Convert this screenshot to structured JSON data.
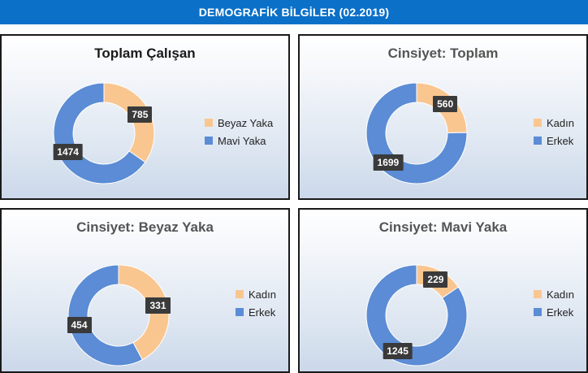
{
  "header": {
    "title": "DEMOGRAFİK BİLGİLER (02.2019)"
  },
  "colors": {
    "light": "#f9c690",
    "blue": "#5b8cd5",
    "banner": "#0a70c8",
    "label_bg": "#3a3a3a"
  },
  "chart_data": [
    {
      "type": "pie",
      "title": "Toplam Çalışan",
      "series": [
        {
          "name": "Beyaz Yaka",
          "value": 785,
          "color": "#f9c690"
        },
        {
          "name": "Mavi Yaka",
          "value": 1474,
          "color": "#5b8cd5"
        }
      ],
      "legend": "right"
    },
    {
      "type": "pie",
      "title": "Cinsiyet: Toplam",
      "series": [
        {
          "name": "Kadın",
          "value": 560,
          "color": "#f9c690"
        },
        {
          "name": "Erkek",
          "value": 1699,
          "color": "#5b8cd5"
        }
      ],
      "legend": "right"
    },
    {
      "type": "pie",
      "title": "Cinsiyet: Beyaz Yaka",
      "series": [
        {
          "name": "Kadın",
          "value": 331,
          "color": "#f9c690"
        },
        {
          "name": "Erkek",
          "value": 454,
          "color": "#5b8cd5"
        }
      ],
      "legend": "right"
    },
    {
      "type": "pie",
      "title": "Cinsiyet: Mavi Yaka",
      "series": [
        {
          "name": "Kadın",
          "value": 229,
          "color": "#f9c690"
        },
        {
          "name": "Erkek",
          "value": 1245,
          "color": "#5b8cd5"
        }
      ],
      "legend": "right"
    }
  ]
}
